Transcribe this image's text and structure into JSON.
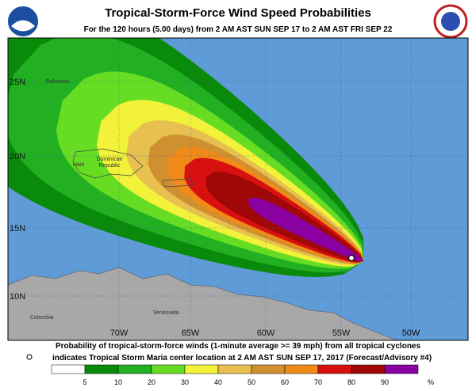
{
  "header": {
    "title": "Tropical-Storm-Force Wind Speed Probabilities",
    "subtitle": "For the 120 hours (5.00 days) from 2 AM AST SUN SEP 17 to 2 AM AST FRI SEP 22"
  },
  "map": {
    "latitude_labels": [
      "25N",
      "20N",
      "15N",
      "10N"
    ],
    "longitude_labels": [
      "70W",
      "65W",
      "60W",
      "55W",
      "50W"
    ],
    "places": [
      "Bahamas",
      "Haiti",
      "Dominican Republic",
      "Venezuela",
      "Colombia"
    ]
  },
  "footer": {
    "line1": "Probability of tropical-storm-force winds (1-minute average >= 39 mph) from all tropical cyclones",
    "line2": "indicates Tropical Storm Maria center location at 2 AM AST SUN SEP 17, 2017 (Forecast/Advisory #4)"
  },
  "legend": {
    "labels": [
      5,
      10,
      20,
      30,
      40,
      50,
      60,
      70,
      80,
      90
    ],
    "unit": "%"
  }
}
